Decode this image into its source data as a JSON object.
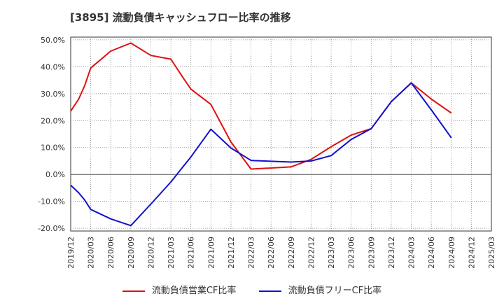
{
  "chart_data": {
    "type": "line",
    "title": "[3895]  流動負債キャッシュフロー比率の推移",
    "xlabel": "",
    "ylabel": "",
    "categories": [
      "2019/12",
      "2020/03",
      "2020/06",
      "2020/09",
      "2020/12",
      "2021/03",
      "2021/06",
      "2021/09",
      "2021/12",
      "2022/03",
      "2022/06",
      "2022/09",
      "2022/12",
      "2023/03",
      "2023/06",
      "2023/09",
      "2023/12",
      "2024/03",
      "2024/06",
      "2024/09",
      "2024/12",
      "2025/03"
    ],
    "y_ticks": [
      "50.0%",
      "40.0%",
      "30.0%",
      "20.0%",
      "10.0%",
      "0.0%",
      "-10.0%",
      "-20.0%"
    ],
    "ylim": [
      -21,
      51
    ],
    "grid": true,
    "legend_position": "bottom",
    "series": [
      {
        "name": "流動負債営業CF比率",
        "color": "#dd1111",
        "points": [
          [
            0,
            23.5
          ],
          [
            0.4,
            28
          ],
          [
            0.7,
            33
          ],
          [
            1,
            39.5
          ],
          [
            2,
            45.8
          ],
          [
            3,
            48.8
          ],
          [
            4,
            44.2
          ],
          [
            5,
            42.8
          ],
          [
            5.6,
            36
          ],
          [
            6,
            31.7
          ],
          [
            7,
            26
          ],
          [
            8,
            12
          ],
          [
            9,
            2
          ],
          [
            10,
            2.4
          ],
          [
            11,
            2.8
          ],
          [
            12,
            5.6
          ],
          [
            13,
            10.3
          ],
          [
            14,
            14.6
          ],
          [
            15,
            17
          ],
          [
            16,
            27
          ],
          [
            17,
            34
          ],
          [
            18,
            28
          ],
          [
            19,
            22.8
          ]
        ]
      },
      {
        "name": "流動負債フリーCF比率",
        "color": "#1111cc",
        "points": [
          [
            0,
            -4
          ],
          [
            0.4,
            -6.8
          ],
          [
            0.7,
            -9.5
          ],
          [
            1,
            -13
          ],
          [
            2,
            -16.5
          ],
          [
            3,
            -19
          ],
          [
            4,
            -11
          ],
          [
            5,
            -2.8
          ],
          [
            5.6,
            2.8
          ],
          [
            6,
            6.5
          ],
          [
            7,
            16.8
          ],
          [
            8,
            9.8
          ],
          [
            9,
            5.2
          ],
          [
            10,
            4.9
          ],
          [
            11,
            4.6
          ],
          [
            12,
            5
          ],
          [
            13,
            7
          ],
          [
            14,
            13
          ],
          [
            15,
            17
          ],
          [
            16,
            27
          ],
          [
            17,
            34
          ],
          [
            18,
            24
          ],
          [
            19,
            13.6
          ]
        ]
      }
    ]
  }
}
